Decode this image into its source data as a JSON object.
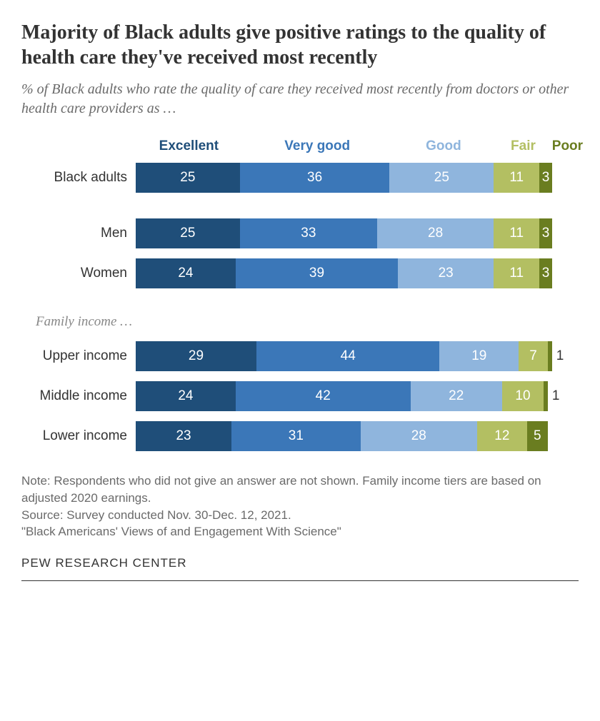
{
  "title": "Majority of Black adults give positive ratings to the quality of health care they've received most recently",
  "subtitle": "% of Black adults who rate the quality of care they received most recently from doctors or other health care providers as …",
  "categories": [
    {
      "label": "Excellent",
      "color": "#1f4e79",
      "textClass": "dark"
    },
    {
      "label": "Very good",
      "color": "#3b77b8",
      "textClass": "dark"
    },
    {
      "label": "Good",
      "color": "#8fb5dd",
      "textClass": "dark"
    },
    {
      "label": "Fair",
      "color": "#b3bf62",
      "textClass": "dark"
    },
    {
      "label": "Poor",
      "color": "#6a7d20",
      "textClass": "dark"
    }
  ],
  "legend_widths_pct": [
    24,
    34,
    23,
    13,
    6
  ],
  "bar_scale_pct": 100,
  "groups": [
    {
      "rows": [
        {
          "label": "Black adults",
          "values": [
            25,
            36,
            25,
            11,
            3
          ],
          "outside": false
        }
      ]
    },
    {
      "rows": [
        {
          "label": "Men",
          "values": [
            25,
            33,
            28,
            11,
            3
          ],
          "outside": false
        },
        {
          "label": "Women",
          "values": [
            24,
            39,
            23,
            11,
            3
          ],
          "outside": false
        }
      ]
    },
    {
      "label": "Family income …",
      "rows": [
        {
          "label": "Upper income",
          "values": [
            29,
            44,
            19,
            7,
            1
          ],
          "outside": true
        },
        {
          "label": "Middle income",
          "values": [
            24,
            42,
            22,
            10,
            1
          ],
          "outside": true
        },
        {
          "label": "Lower income",
          "values": [
            23,
            31,
            28,
            12,
            5
          ],
          "outside": false
        }
      ]
    }
  ],
  "notes_lines": [
    "Note: Respondents who did not give an answer are not shown. Family income tiers are based on adjusted 2020 earnings.",
    "Source: Survey conducted Nov. 30-Dec. 12, 2021.",
    "\"Black Americans' Views of and Engagement With Science\""
  ],
  "footer": "PEW RESEARCH CENTER",
  "chart_type": "stacked-horizontal-bar",
  "background_color": "#ffffff"
}
